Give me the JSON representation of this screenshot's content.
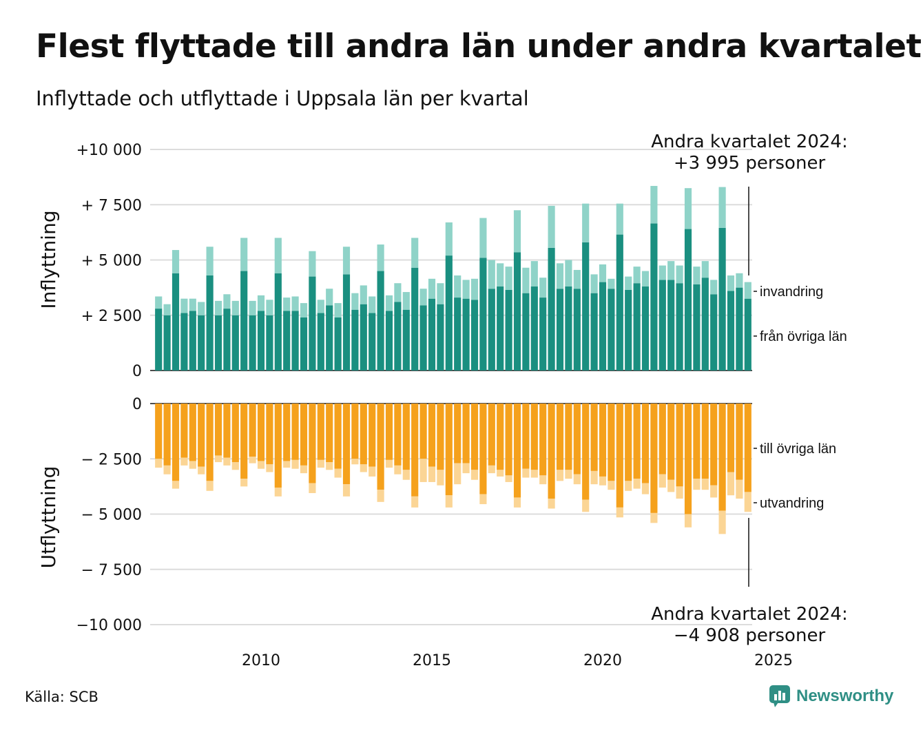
{
  "title": "Flest flyttade till andra län under andra kvartalet",
  "subtitle": "Inflyttade och utflyttade i Uppsala län per kvartal",
  "source": "Källa: SCB",
  "brand": "Newsworthy",
  "colors": {
    "inflytt_ovriga_lan": "#1a8f80",
    "invandring": "#8fd3c8",
    "utflytt_ovriga_lan": "#f5a11c",
    "utvandring": "#fbd595",
    "grid": "#dcdcdc",
    "brand": "#2f8f85"
  },
  "chart_data": {
    "type": "bar",
    "stacked": true,
    "x_start": "2007 Q1",
    "x_end": "2024 Q2",
    "x_ticks": [
      "2010",
      "2015",
      "2020",
      "2025"
    ],
    "panels": [
      {
        "ylabel": "Inflyttning",
        "ylim": [
          0,
          10000
        ],
        "y_ticks": [
          {
            "value": 10000,
            "label": "+10 000"
          },
          {
            "value": 7500,
            "label": "+ 7 500"
          },
          {
            "value": 5000,
            "label": "+ 5 000"
          },
          {
            "value": 2500,
            "label": "+ 2 500"
          },
          {
            "value": 0,
            "label": "0"
          }
        ],
        "annotation": {
          "line1": "Andra kvartalet 2024:",
          "line2": "+3 995 personer"
        },
        "series": [
          {
            "name": "från övriga län",
            "values": [
              2800,
              2500,
              4400,
              2600,
              2700,
              2500,
              4300,
              2500,
              2800,
              2500,
              4500,
              2500,
              2700,
              2500,
              4400,
              2700,
              2700,
              2400,
              4250,
              2600,
              2950,
              2400,
              4350,
              2750,
              3000,
              2600,
              4500,
              2700,
              3100,
              2750,
              4650,
              2950,
              3250,
              3000,
              5200,
              3300,
              3250,
              3200,
              5100,
              3700,
              3800,
              3650,
              5350,
              3500,
              3800,
              3300,
              5550,
              3700,
              3800,
              3700,
              5800,
              3500,
              4000,
              3700,
              6150,
              3650,
              3950,
              3800,
              6650,
              4100,
              4100,
              3950,
              6400,
              3900,
              4200,
              3450,
              6450,
              3600,
              3750,
              3250
            ]
          },
          {
            "name": "invandring",
            "values": [
              550,
              500,
              1050,
              650,
              550,
              600,
              1300,
              650,
              650,
              650,
              1500,
              650,
              700,
              700,
              1600,
              600,
              650,
              650,
              1150,
              600,
              750,
              650,
              1250,
              750,
              850,
              750,
              1200,
              700,
              850,
              800,
              1350,
              750,
              900,
              950,
              1500,
              1000,
              850,
              950,
              1800,
              1300,
              1050,
              1050,
              1900,
              1150,
              1150,
              900,
              1900,
              1150,
              1200,
              850,
              1750,
              850,
              800,
              450,
              1400,
              600,
              750,
              700,
              1700,
              650,
              850,
              800,
              1850,
              800,
              750,
              650,
              1850,
              700,
              650,
              750
            ]
          }
        ]
      },
      {
        "ylabel": "Utflyttning",
        "ylim": [
          -10000,
          0
        ],
        "y_ticks": [
          {
            "value": 0,
            "label": "0"
          },
          {
            "value": -2500,
            "label": "− 2 500"
          },
          {
            "value": -5000,
            "label": "− 5 000"
          },
          {
            "value": -7500,
            "label": "− 7 500"
          },
          {
            "value": -10000,
            "label": "−10 000"
          }
        ],
        "annotation": {
          "line1": "Andra kvartalet 2024:",
          "line2": "−4 908 personer"
        },
        "series": [
          {
            "name": "till övriga län",
            "values": [
              -2500,
              -2800,
              -3500,
              -2450,
              -2600,
              -2850,
              -3500,
              -2350,
              -2450,
              -2650,
              -3400,
              -2400,
              -2600,
              -2750,
              -3800,
              -2600,
              -2550,
              -2800,
              -3600,
              -2550,
              -2650,
              -2950,
              -3650,
              -2500,
              -2750,
              -2850,
              -3900,
              -2550,
              -2800,
              -3000,
              -4200,
              -2500,
              -2850,
              -3000,
              -4150,
              -2700,
              -2700,
              -3000,
              -4100,
              -2800,
              -3000,
              -3250,
              -4250,
              -2950,
              -3000,
              -3250,
              -4300,
              -3000,
              -3000,
              -3200,
              -4350,
              -3050,
              -3300,
              -3500,
              -4700,
              -3500,
              -3400,
              -3600,
              -4950,
              -3200,
              -3450,
              -3750,
              -5000,
              -3400,
              -3400,
              -3700,
              -4850,
              -3100,
              -3450,
              -4000
            ]
          },
          {
            "name": "utvandring",
            "values": [
              -400,
              -400,
              -350,
              -350,
              -350,
              -350,
              -450,
              -300,
              -350,
              -350,
              -350,
              -300,
              -350,
              -350,
              -400,
              -300,
              -400,
              -350,
              -450,
              -350,
              -350,
              -400,
              -550,
              -250,
              -350,
              -450,
              -550,
              -350,
              -400,
              -450,
              -500,
              -1050,
              -700,
              -700,
              -550,
              -950,
              -450,
              -450,
              -450,
              -350,
              -300,
              -300,
              -450,
              -400,
              -350,
              -400,
              -450,
              -500,
              -400,
              -450,
              -550,
              -600,
              -400,
              -400,
              -450,
              -450,
              -450,
              -500,
              -450,
              -600,
              -550,
              -550,
              -600,
              -500,
              -500,
              -550,
              -1050,
              -1050,
              -850,
              -900
            ]
          }
        ]
      }
    ]
  }
}
